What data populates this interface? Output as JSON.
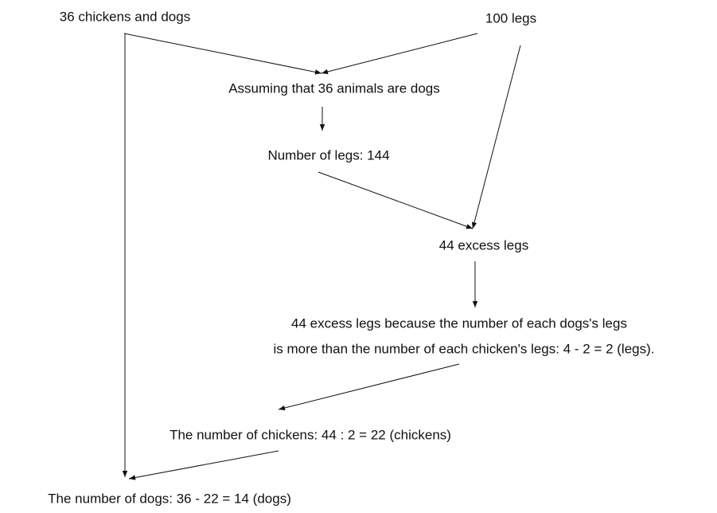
{
  "nodes": [
    {
      "label": "36 chickens and dogs"
    },
    {
      "label": "100 legs"
    },
    {
      "label": "Assuming that 36 animals are dogs"
    },
    {
      "label": "Number of legs: 144"
    },
    {
      "label": "44 excess legs"
    },
    {
      "lines": [
        "44 excess legs because the number of each dogs's legs",
        "is more than the number of each chicken's legs: 4 - 2 = 2 (legs)."
      ]
    },
    {
      "label": "The number of chickens: 44 : 2 = 22 (chickens)"
    },
    {
      "label": "The number of dogs: 36 - 22 = 14 (dogs)"
    }
  ]
}
